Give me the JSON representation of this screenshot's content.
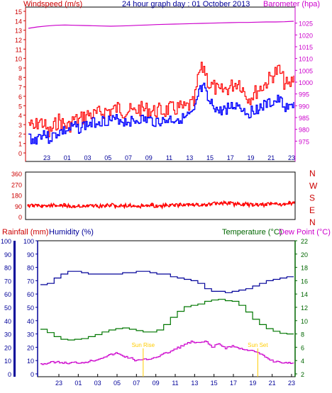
{
  "header": {
    "wind_label": "Windspeed (m/s)",
    "title": "24 hour graph day : 01 October 2013",
    "baro_label": "Barometer (hpa)"
  },
  "colors": {
    "gust": "#ff0000",
    "wind": "#0000ff",
    "barometer": "#cc00cc",
    "direction": "#ff0000",
    "humidity": "#000099",
    "temperature": "#007700",
    "dewpoint": "#cc00cc",
    "axis_blue": "#000099",
    "axis_green": "#006600",
    "axis_red": "#cc0000",
    "axis_magenta": "#cc00cc"
  },
  "chart_data": [
    {
      "type": "line",
      "name": "wind",
      "x_tick_labels": [
        "23",
        "01",
        "03",
        "05",
        "07",
        "09",
        "11",
        "13",
        "15",
        "17",
        "19",
        "21",
        "23"
      ],
      "y_left": {
        "label": "Windspeed (m/s)",
        "min": 0,
        "max": 15,
        "ticks": [
          0,
          1,
          2,
          3,
          4,
          5,
          6,
          7,
          8,
          9,
          10,
          11,
          12,
          13,
          14,
          15
        ]
      },
      "y_right": {
        "label": "Barometer (hpa)",
        "min": 970,
        "max": 1030,
        "ticks": [
          975,
          980,
          985,
          990,
          995,
          1000,
          1005,
          1010,
          1015,
          1020,
          1025
        ]
      },
      "series": [
        {
          "key": "gust",
          "axis": "left",
          "values": [
            3.2,
            2.5,
            3.4,
            3.1,
            2.0,
            2.8,
            3.5,
            3.0,
            2.8,
            3.6,
            3.4,
            3.9,
            4.1,
            4.0,
            4.2,
            4.4,
            4.5,
            4.6,
            4.8,
            4.4,
            4.5,
            4.3,
            4.7,
            4.6,
            4.6,
            4.4,
            4.5,
            4.4,
            4.7,
            4.6,
            4.8,
            4.7,
            5.0,
            5.2,
            8.5,
            9.1,
            7.2,
            7.0,
            6.4,
            6.7,
            6.9,
            7.3,
            7.6,
            6.5,
            5.8,
            6.3,
            6.8,
            7.2,
            7.8,
            8.4,
            8.8,
            7.5,
            7.0,
            8.2
          ]
        },
        {
          "key": "wind",
          "axis": "left",
          "values": [
            1.8,
            1.2,
            1.8,
            2.2,
            1.5,
            1.8,
            2.2,
            2.3,
            2.4,
            2.8,
            2.6,
            2.9,
            3.0,
            3.2,
            3.4,
            3.4,
            3.5,
            3.4,
            3.6,
            3.3,
            3.4,
            3.3,
            3.6,
            3.5,
            3.5,
            3.3,
            3.4,
            3.3,
            3.6,
            3.5,
            3.7,
            3.6,
            3.9,
            4.1,
            6.5,
            6.8,
            5.2,
            5.0,
            4.3,
            4.6,
            4.8,
            5.0,
            5.1,
            4.5,
            4.2,
            4.6,
            4.8,
            5.0,
            5.2,
            5.4,
            5.6,
            5.0,
            4.6,
            5.4
          ]
        },
        {
          "key": "barometer",
          "axis": "right",
          "values": [
            1022.8,
            1023.4,
            1023.8,
            1024.1,
            1024.2,
            1024.1,
            1024.0,
            1023.9,
            1023.8,
            1023.7,
            1023.8,
            1023.9,
            1024.1,
            1024.2,
            1024.4,
            1024.5,
            1024.6,
            1024.7,
            1024.8,
            1024.9,
            1025.0,
            1025.1,
            1025.2,
            1025.3,
            1025.3,
            1025.4,
            1025.5,
            1025.5,
            1025.6,
            1025.8
          ]
        }
      ]
    },
    {
      "type": "scatter",
      "name": "wind-direction",
      "y_left": {
        "min": 0,
        "max": 360,
        "ticks": [
          0,
          90,
          180,
          270,
          360
        ]
      },
      "compass_labels": [
        "N",
        "W",
        "S",
        "E",
        "N"
      ],
      "series": [
        {
          "key": "direction",
          "values": [
            95,
            90,
            96,
            92,
            88,
            94,
            90,
            96,
            92,
            88,
            86,
            92,
            90,
            88,
            94,
            90,
            86,
            92,
            95,
            90,
            88,
            92,
            94,
            90,
            86,
            92,
            90,
            96,
            92,
            88,
            94,
            98,
            92,
            96,
            100,
            104,
            98,
            102,
            100,
            96,
            104,
            108,
            112,
            118,
            110,
            104,
            108,
            106,
            100,
            102,
            104,
            100,
            98,
            106,
            110,
            104,
            106,
            112,
            118
          ]
        }
      ]
    },
    {
      "type": "line",
      "name": "humidity-temperature",
      "x_tick_labels": [
        "23",
        "01",
        "03",
        "05",
        "07",
        "09",
        "11",
        "13",
        "15",
        "17",
        "19",
        "21",
        "23"
      ],
      "y_left": {
        "label": "Humidity (%)",
        "min": 0,
        "max": 100,
        "ticks": [
          0,
          10,
          20,
          30,
          40,
          50,
          60,
          70,
          80,
          90,
          100
        ]
      },
      "y_right": {
        "label": "Temperature (°C)",
        "min": 2,
        "max": 22,
        "ticks": [
          2,
          4,
          6,
          8,
          10,
          12,
          14,
          16,
          18,
          20,
          22
        ]
      },
      "rainfall_label": "Rainfall (mm)",
      "dewpoint_label": "Dew Point (°C)",
      "annotations": [
        "Sun Rise",
        "Sun Set"
      ],
      "series": [
        {
          "key": "humidity",
          "axis": "left",
          "values": [
            67,
            68,
            72,
            75,
            77,
            77,
            76,
            75,
            75,
            75,
            75,
            75,
            76,
            76,
            77,
            77,
            76,
            75,
            75,
            73,
            72,
            71,
            70,
            68,
            64,
            62,
            62,
            61,
            62,
            63,
            64,
            66,
            68,
            70,
            71,
            72,
            73,
            73
          ]
        },
        {
          "key": "temperature",
          "axis": "right",
          "values": [
            8.7,
            8.2,
            7.6,
            7.2,
            7.1,
            7.2,
            7.3,
            7.6,
            7.9,
            8.3,
            8.6,
            8.8,
            8.9,
            8.7,
            8.5,
            8.3,
            8.3,
            8.6,
            9.4,
            10.5,
            11.4,
            12.1,
            12.3,
            12.5,
            12.9,
            13.1,
            13.2,
            13.0,
            12.9,
            12.3,
            11.3,
            10.2,
            9.4,
            8.8,
            8.4,
            8.1,
            8.0,
            8.0
          ]
        },
        {
          "key": "dewpoint",
          "axis": "right",
          "values": [
            3.5,
            3.6,
            3.8,
            3.7,
            3.6,
            3.7,
            3.7,
            3.9,
            4.1,
            4.5,
            4.8,
            5.1,
            4.7,
            4.4,
            4.0,
            4.1,
            4.3,
            4.6,
            5.0,
            5.4,
            5.9,
            6.4,
            6.8,
            6.6,
            6.9,
            6.0,
            6.5,
            5.9,
            6.2,
            5.8,
            5.7,
            5.4,
            5.0,
            4.4,
            3.9,
            3.8,
            3.6,
            3.6
          ]
        }
      ]
    }
  ]
}
